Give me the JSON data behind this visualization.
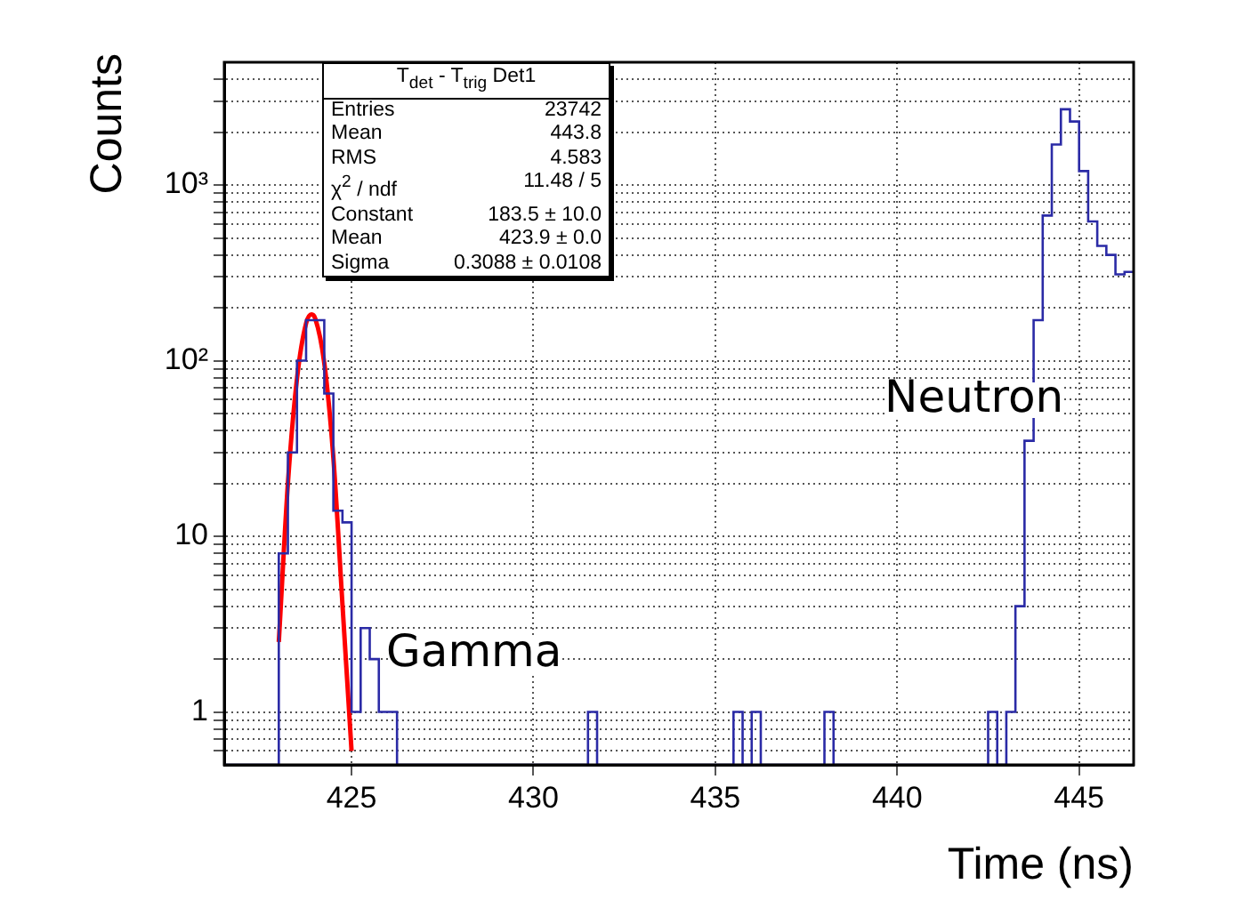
{
  "chart_data": {
    "type": "histogram",
    "xlabel": "Time (ns)",
    "ylabel": "Counts",
    "bins": [
      421.5,
      421.75,
      422,
      422.25,
      422.5,
      422.75,
      423,
      423.25,
      423.5,
      423.75,
      424,
      424.25,
      424.5,
      424.75,
      425,
      425.25,
      425.5,
      425.75,
      426,
      426.25,
      426.5,
      426.75,
      427,
      427.25,
      427.5,
      427.75,
      428,
      428.25,
      428.5,
      428.75,
      429,
      429.25,
      429.5,
      429.75,
      430,
      430.25,
      430.5,
      430.75,
      431,
      431.25,
      431.5,
      431.75,
      432,
      432.25,
      432.5,
      432.75,
      433,
      433.25,
      433.5,
      433.75,
      434,
      434.25,
      434.5,
      434.75,
      435,
      435.25,
      435.5,
      435.75,
      436,
      436.25,
      436.5,
      436.75,
      437,
      437.25,
      437.5,
      437.75,
      438,
      438.25,
      438.5,
      438.75,
      439,
      439.25,
      439.5,
      439.75,
      440,
      440.25,
      440.5,
      440.75,
      441,
      441.25,
      441.5,
      441.75,
      442,
      442.25,
      442.5,
      442.75,
      443,
      443.25,
      443.5,
      443.75,
      444,
      444.25,
      444.5,
      444.75,
      445,
      445.25,
      445.5,
      445.75,
      446,
      446.25,
      446.5
    ],
    "series": [
      {
        "color": "#2b2ba6",
        "values": [
          null,
          null,
          null,
          null,
          null,
          null,
          8,
          30,
          100,
          170,
          170,
          65,
          14,
          12,
          1,
          3,
          2,
          1,
          1,
          null,
          null,
          null,
          null,
          null,
          null,
          null,
          null,
          null,
          null,
          null,
          null,
          null,
          null,
          null,
          null,
          null,
          null,
          null,
          null,
          null,
          1,
          null,
          null,
          null,
          null,
          null,
          null,
          null,
          null,
          null,
          null,
          null,
          null,
          null,
          null,
          null,
          1,
          null,
          1,
          null,
          null,
          null,
          null,
          null,
          null,
          null,
          1,
          null,
          null,
          null,
          null,
          null,
          null,
          null,
          null,
          null,
          null,
          null,
          null,
          null,
          null,
          null,
          null,
          null,
          1,
          null,
          1,
          4,
          35,
          170,
          670,
          1700,
          2700,
          2300,
          1200,
          620,
          450,
          400,
          310,
          320
        ]
      },
      {
        "type": "line",
        "color": "#ff0000",
        "x": [
          423.0,
          423.25,
          423.5,
          423.75,
          423.9,
          424.0,
          424.25,
          424.5,
          424.75,
          425.0
        ],
        "values": [
          2.5,
          20,
          79,
          163,
          183.5,
          174,
          97,
          28,
          4.1,
          0.6
        ]
      }
    ],
    "xlim": [
      421.5,
      446.5
    ],
    "xticks": [
      425,
      430,
      435,
      440,
      445
    ],
    "ylim": [
      0.5,
      5000
    ],
    "yticks": [
      {
        "value": 0.6,
        "label": null
      },
      {
        "value": 0.7,
        "label": null
      },
      {
        "value": 0.8,
        "label": null
      },
      {
        "value": 0.9,
        "label": null
      },
      1,
      {
        "value": 2,
        "label": null
      },
      {
        "value": 3,
        "label": null
      },
      {
        "value": 4,
        "label": null
      },
      {
        "value": 5,
        "label": null
      },
      {
        "value": 6,
        "label": null
      },
      {
        "value": 7,
        "label": null
      },
      {
        "value": 8,
        "label": null
      },
      {
        "value": 9,
        "label": null
      },
      10,
      {
        "value": 20,
        "label": null
      },
      {
        "value": 30,
        "label": null
      },
      {
        "value": 40,
        "label": null
      },
      {
        "value": 50,
        "label": null
      },
      {
        "value": 60,
        "label": null
      },
      {
        "value": 70,
        "label": null
      },
      {
        "value": 80,
        "label": null
      },
      {
        "value": 90,
        "label": null
      },
      {
        "value": 100,
        "label": "10²"
      },
      {
        "value": 200,
        "label": null
      },
      {
        "value": 300,
        "label": null
      },
      {
        "value": 400,
        "label": null
      },
      {
        "value": 500,
        "label": null
      },
      {
        "value": 600,
        "label": null
      },
      {
        "value": 700,
        "label": null
      },
      {
        "value": 800,
        "label": null
      },
      {
        "value": 900,
        "label": null
      },
      {
        "value": 1000,
        "label": "10³"
      },
      {
        "value": 2000,
        "label": null
      },
      {
        "value": 3000,
        "label": null
      },
      {
        "value": 4000,
        "label": null
      }
    ],
    "log": "y",
    "grid": true,
    "legend": false,
    "annotations": [
      "T$_{det}$ - T$_{trig}$ Det1",
      "Entries",
      "23742",
      "Mean",
      "443.8",
      "RMS",
      "4.583",
      "χ$^{2}$ / ndf",
      "11.48 / 5",
      "Constant",
      "183.5 ± 10.0",
      "Mean",
      "423.9 ± 0.0",
      "Sigma",
      "0.3088 ± 0.0108",
      "Gamma",
      "Neutron"
    ]
  }
}
